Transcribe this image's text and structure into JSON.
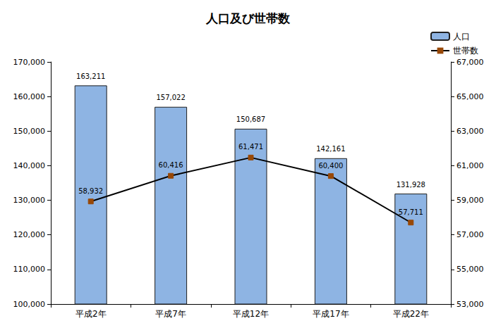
{
  "chart_data": {
    "type": "bar",
    "title": "人口及び世帯数",
    "categories": [
      "平成2年",
      "平成7年",
      "平成12年",
      "平成17年",
      "平成22年"
    ],
    "series": [
      {
        "name": "人口",
        "type": "bar",
        "color": "#8eb4e3",
        "axis": "y",
        "values": [
          163211,
          157022,
          150687,
          142161,
          131928
        ],
        "value_labels": [
          "163,211",
          "157,022",
          "150,687",
          "142,161",
          "131,928"
        ]
      },
      {
        "name": "世帯数",
        "type": "line",
        "color": "#000000",
        "marker": "square",
        "line_style": "solid",
        "axis": "y2",
        "values": [
          58932,
          60416,
          61471,
          60400,
          57711
        ],
        "value_labels": [
          "58,932",
          "60,416",
          "61,471",
          "60,400",
          "57,711"
        ]
      }
    ],
    "ylim": [
      100000,
      170000
    ],
    "yticks": [
      {
        "value": 100000,
        "label": "100,000"
      },
      {
        "value": 110000,
        "label": "110,000"
      },
      {
        "value": 120000,
        "label": "120,000"
      },
      {
        "value": 130000,
        "label": "130,000"
      },
      {
        "value": 140000,
        "label": "140,000"
      },
      {
        "value": 150000,
        "label": "150,000"
      },
      {
        "value": 160000,
        "label": "160,000"
      },
      {
        "value": 170000,
        "label": "170,000"
      }
    ],
    "y2lim": [
      53000,
      67000
    ],
    "y2ticks": [
      {
        "value": 53000,
        "label": "53,000"
      },
      {
        "value": 55000,
        "label": "55,000"
      },
      {
        "value": 57000,
        "label": "57,000"
      },
      {
        "value": 59000,
        "label": "59,000"
      },
      {
        "value": 61000,
        "label": "61,000"
      },
      {
        "value": 63000,
        "label": "63,000"
      },
      {
        "value": 65000,
        "label": "65,000"
      },
      {
        "value": 67000,
        "label": "67,000"
      }
    ],
    "grid": false,
    "legend": "upper right",
    "data_labels": true
  }
}
